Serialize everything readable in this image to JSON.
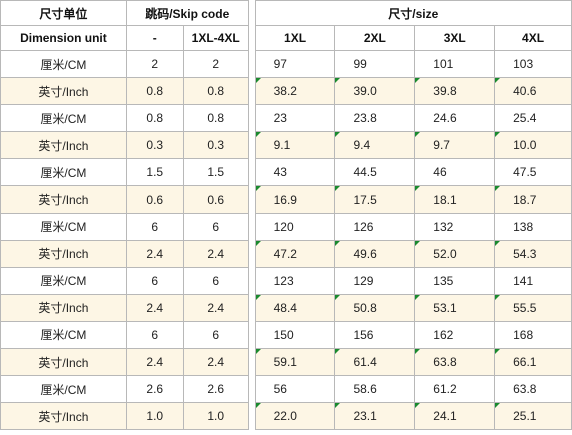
{
  "header": {
    "unit_label": "尺寸单位",
    "unit_sub": "Dimension unit",
    "skip_label": "跳码/Skip code",
    "skip_cols": [
      "-",
      "1XL-4XL"
    ],
    "size_label": "尺寸/size",
    "sizes": [
      "1XL",
      "2XL",
      "3XL",
      "4XL"
    ]
  },
  "rows": [
    {
      "unit": "厘米/CM",
      "skip": [
        "2",
        "2"
      ],
      "values": [
        "97",
        "99",
        "101",
        "103"
      ]
    },
    {
      "unit": "英寸/Inch",
      "skip": [
        "0.8",
        "0.8"
      ],
      "values": [
        "38.2",
        "39.0",
        "39.8",
        "40.6"
      ]
    },
    {
      "unit": "厘米/CM",
      "skip": [
        "0.8",
        "0.8"
      ],
      "values": [
        "23",
        "23.8",
        "24.6",
        "25.4"
      ]
    },
    {
      "unit": "英寸/Inch",
      "skip": [
        "0.3",
        "0.3"
      ],
      "values": [
        "9.1",
        "9.4",
        "9.7",
        "10.0"
      ]
    },
    {
      "unit": "厘米/CM",
      "skip": [
        "1.5",
        "1.5"
      ],
      "values": [
        "43",
        "44.5",
        "46",
        "47.5"
      ]
    },
    {
      "unit": "英寸/Inch",
      "skip": [
        "0.6",
        "0.6"
      ],
      "values": [
        "16.9",
        "17.5",
        "18.1",
        "18.7"
      ]
    },
    {
      "unit": "厘米/CM",
      "skip": [
        "6",
        "6"
      ],
      "values": [
        "120",
        "126",
        "132",
        "138"
      ]
    },
    {
      "unit": "英寸/Inch",
      "skip": [
        "2.4",
        "2.4"
      ],
      "values": [
        "47.2",
        "49.6",
        "52.0",
        "54.3"
      ]
    },
    {
      "unit": "厘米/CM",
      "skip": [
        "6",
        "6"
      ],
      "values": [
        "123",
        "129",
        "135",
        "141"
      ]
    },
    {
      "unit": "英寸/Inch",
      "skip": [
        "2.4",
        "2.4"
      ],
      "values": [
        "48.4",
        "50.8",
        "53.1",
        "55.5"
      ]
    },
    {
      "unit": "厘米/CM",
      "skip": [
        "6",
        "6"
      ],
      "values": [
        "150",
        "156",
        "162",
        "168"
      ]
    },
    {
      "unit": "英寸/Inch",
      "skip": [
        "2.4",
        "2.4"
      ],
      "values": [
        "59.1",
        "61.4",
        "63.8",
        "66.1"
      ]
    },
    {
      "unit": "厘米/CM",
      "skip": [
        "2.6",
        "2.6"
      ],
      "values": [
        "56",
        "58.6",
        "61.2",
        "63.8"
      ]
    },
    {
      "unit": "英寸/Inch",
      "skip": [
        "1.0",
        "1.0"
      ],
      "values": [
        "22.0",
        "23.1",
        "24.1",
        "25.1"
      ]
    }
  ],
  "colors": {
    "inch_row_background": "#fdf6e5",
    "gridline": "#b8b8b8",
    "cell_marker": "#1a8a2e"
  }
}
